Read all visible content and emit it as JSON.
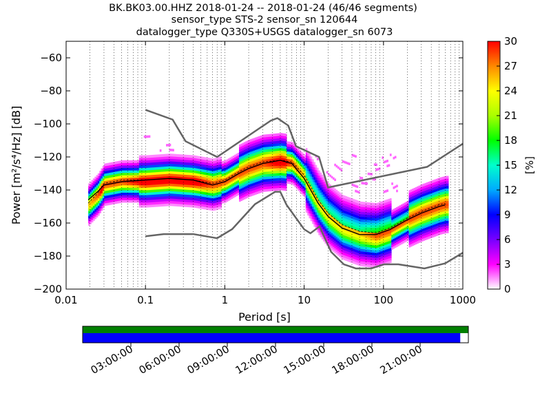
{
  "title_lines": [
    "BK.BK03.00.HHZ   2018-01-24 -- 2018-01-24  (46/46 segments)",
    "sensor_type STS-2 sensor_sn 120644",
    "datalogger_type Q330S+USGS datalogger_sn 6073"
  ],
  "chart_data": {
    "type": "heatmap",
    "xscale": "log",
    "xlabel": "Period [s]",
    "ylabel": "Power [m²/s⁴/Hz] [dB]",
    "xlim": [
      0.01,
      1000
    ],
    "ylim": [
      -200,
      -50
    ],
    "xticks": [
      0.01,
      0.1,
      1,
      10,
      100,
      1000
    ],
    "xtick_labels": [
      "0.01",
      "0.1",
      "1",
      "10",
      "100",
      "1000"
    ],
    "yticks": [
      -200,
      -180,
      -160,
      -140,
      -120,
      -100,
      -80,
      -60
    ],
    "ytick_labels": [
      "−200",
      "−180",
      "−160",
      "−140",
      "−120",
      "−100",
      "−80",
      "−60"
    ],
    "grid": "dotted vertical lines",
    "colorbar": {
      "label": "[%]",
      "range": [
        0,
        30
      ],
      "ticks": [
        0,
        3,
        6,
        9,
        12,
        15,
        18,
        21,
        24,
        27,
        30
      ],
      "colors": [
        "#ffffff",
        "#ff00ff",
        "#7700ff",
        "#0000ff",
        "#00aaff",
        "#00ffcc",
        "#00ff00",
        "#aaff00",
        "#ffff00",
        "#ff8800",
        "#ff0000"
      ]
    },
    "high_noise_model": [
      [
        0.1,
        -91.5
      ],
      [
        0.22,
        -97.4
      ],
      [
        0.32,
        -110.5
      ],
      [
        0.8,
        -120
      ],
      [
        3.8,
        -98
      ],
      [
        4.6,
        -96.5
      ],
      [
        6.3,
        -101
      ],
      [
        7.9,
        -113.5
      ],
      [
        15.4,
        -120
      ],
      [
        20,
        -138.5
      ],
      [
        354.8,
        -126
      ],
      [
        1000,
        -112
      ]
    ],
    "low_noise_model": [
      [
        0.1,
        -168
      ],
      [
        0.17,
        -166.7
      ],
      [
        0.4,
        -166.7
      ],
      [
        0.8,
        -169.2
      ],
      [
        1.24,
        -163.7
      ],
      [
        2.4,
        -148.6
      ],
      [
        4.3,
        -141.1
      ],
      [
        5,
        -141.1
      ],
      [
        6,
        -149
      ],
      [
        10,
        -163.8
      ],
      [
        12,
        -166.2
      ],
      [
        15.6,
        -162.1
      ],
      [
        21.9,
        -177.5
      ],
      [
        31.6,
        -185
      ],
      [
        45,
        -187.5
      ],
      [
        70,
        -187.5
      ],
      [
        101,
        -185
      ],
      [
        154,
        -185
      ],
      [
        328,
        -187.5
      ],
      [
        600,
        -184.4
      ],
      [
        1000,
        -178
      ]
    ],
    "mean_curve": [
      [
        0.019,
        -146
      ],
      [
        0.025,
        -141
      ],
      [
        0.03,
        -137
      ],
      [
        0.05,
        -135
      ],
      [
        0.1,
        -134
      ],
      [
        0.2,
        -133
      ],
      [
        0.4,
        -134
      ],
      [
        0.7,
        -137
      ],
      [
        1,
        -135
      ],
      [
        1.5,
        -130
      ],
      [
        2,
        -127
      ],
      [
        3,
        -124
      ],
      [
        5,
        -122
      ],
      [
        7,
        -124
      ],
      [
        10,
        -133
      ],
      [
        15,
        -148
      ],
      [
        20,
        -156
      ],
      [
        30,
        -163
      ],
      [
        50,
        -167
      ],
      [
        80,
        -167
      ],
      [
        120,
        -164
      ],
      [
        200,
        -158
      ],
      [
        300,
        -154
      ],
      [
        500,
        -150
      ],
      [
        600,
        -149
      ]
    ],
    "mode_curve": [
      [
        0.019,
        -148
      ],
      [
        0.025,
        -142
      ],
      [
        0.03,
        -136
      ],
      [
        0.05,
        -134
      ],
      [
        0.1,
        -134
      ],
      [
        0.2,
        -133
      ],
      [
        0.4,
        -134
      ],
      [
        0.7,
        -136
      ],
      [
        1,
        -134
      ],
      [
        1.5,
        -129
      ],
      [
        2,
        -126
      ],
      [
        3,
        -123
      ],
      [
        5,
        -122
      ],
      [
        7,
        -123
      ],
      [
        10,
        -131
      ],
      [
        15,
        -146
      ],
      [
        20,
        -154
      ],
      [
        30,
        -161
      ],
      [
        50,
        -165
      ],
      [
        80,
        -166
      ],
      [
        120,
        -163
      ],
      [
        200,
        -157
      ],
      [
        300,
        -153
      ],
      [
        500,
        -149
      ],
      [
        600,
        -148
      ]
    ]
  },
  "timeline": {
    "tick_labels": [
      "03:00:00",
      "06:00:00",
      "09:00:00",
      "12:00:00",
      "15:00:00",
      "18:00:00",
      "21:00:00"
    ],
    "tick_hours": [
      3,
      6,
      9,
      12,
      15,
      18,
      21
    ],
    "span_hours": 24,
    "data_coverage_fraction": 1.0,
    "psd_coverage_fraction": 0.979,
    "data_color": "#008000",
    "psd_color": "#0000ff"
  }
}
